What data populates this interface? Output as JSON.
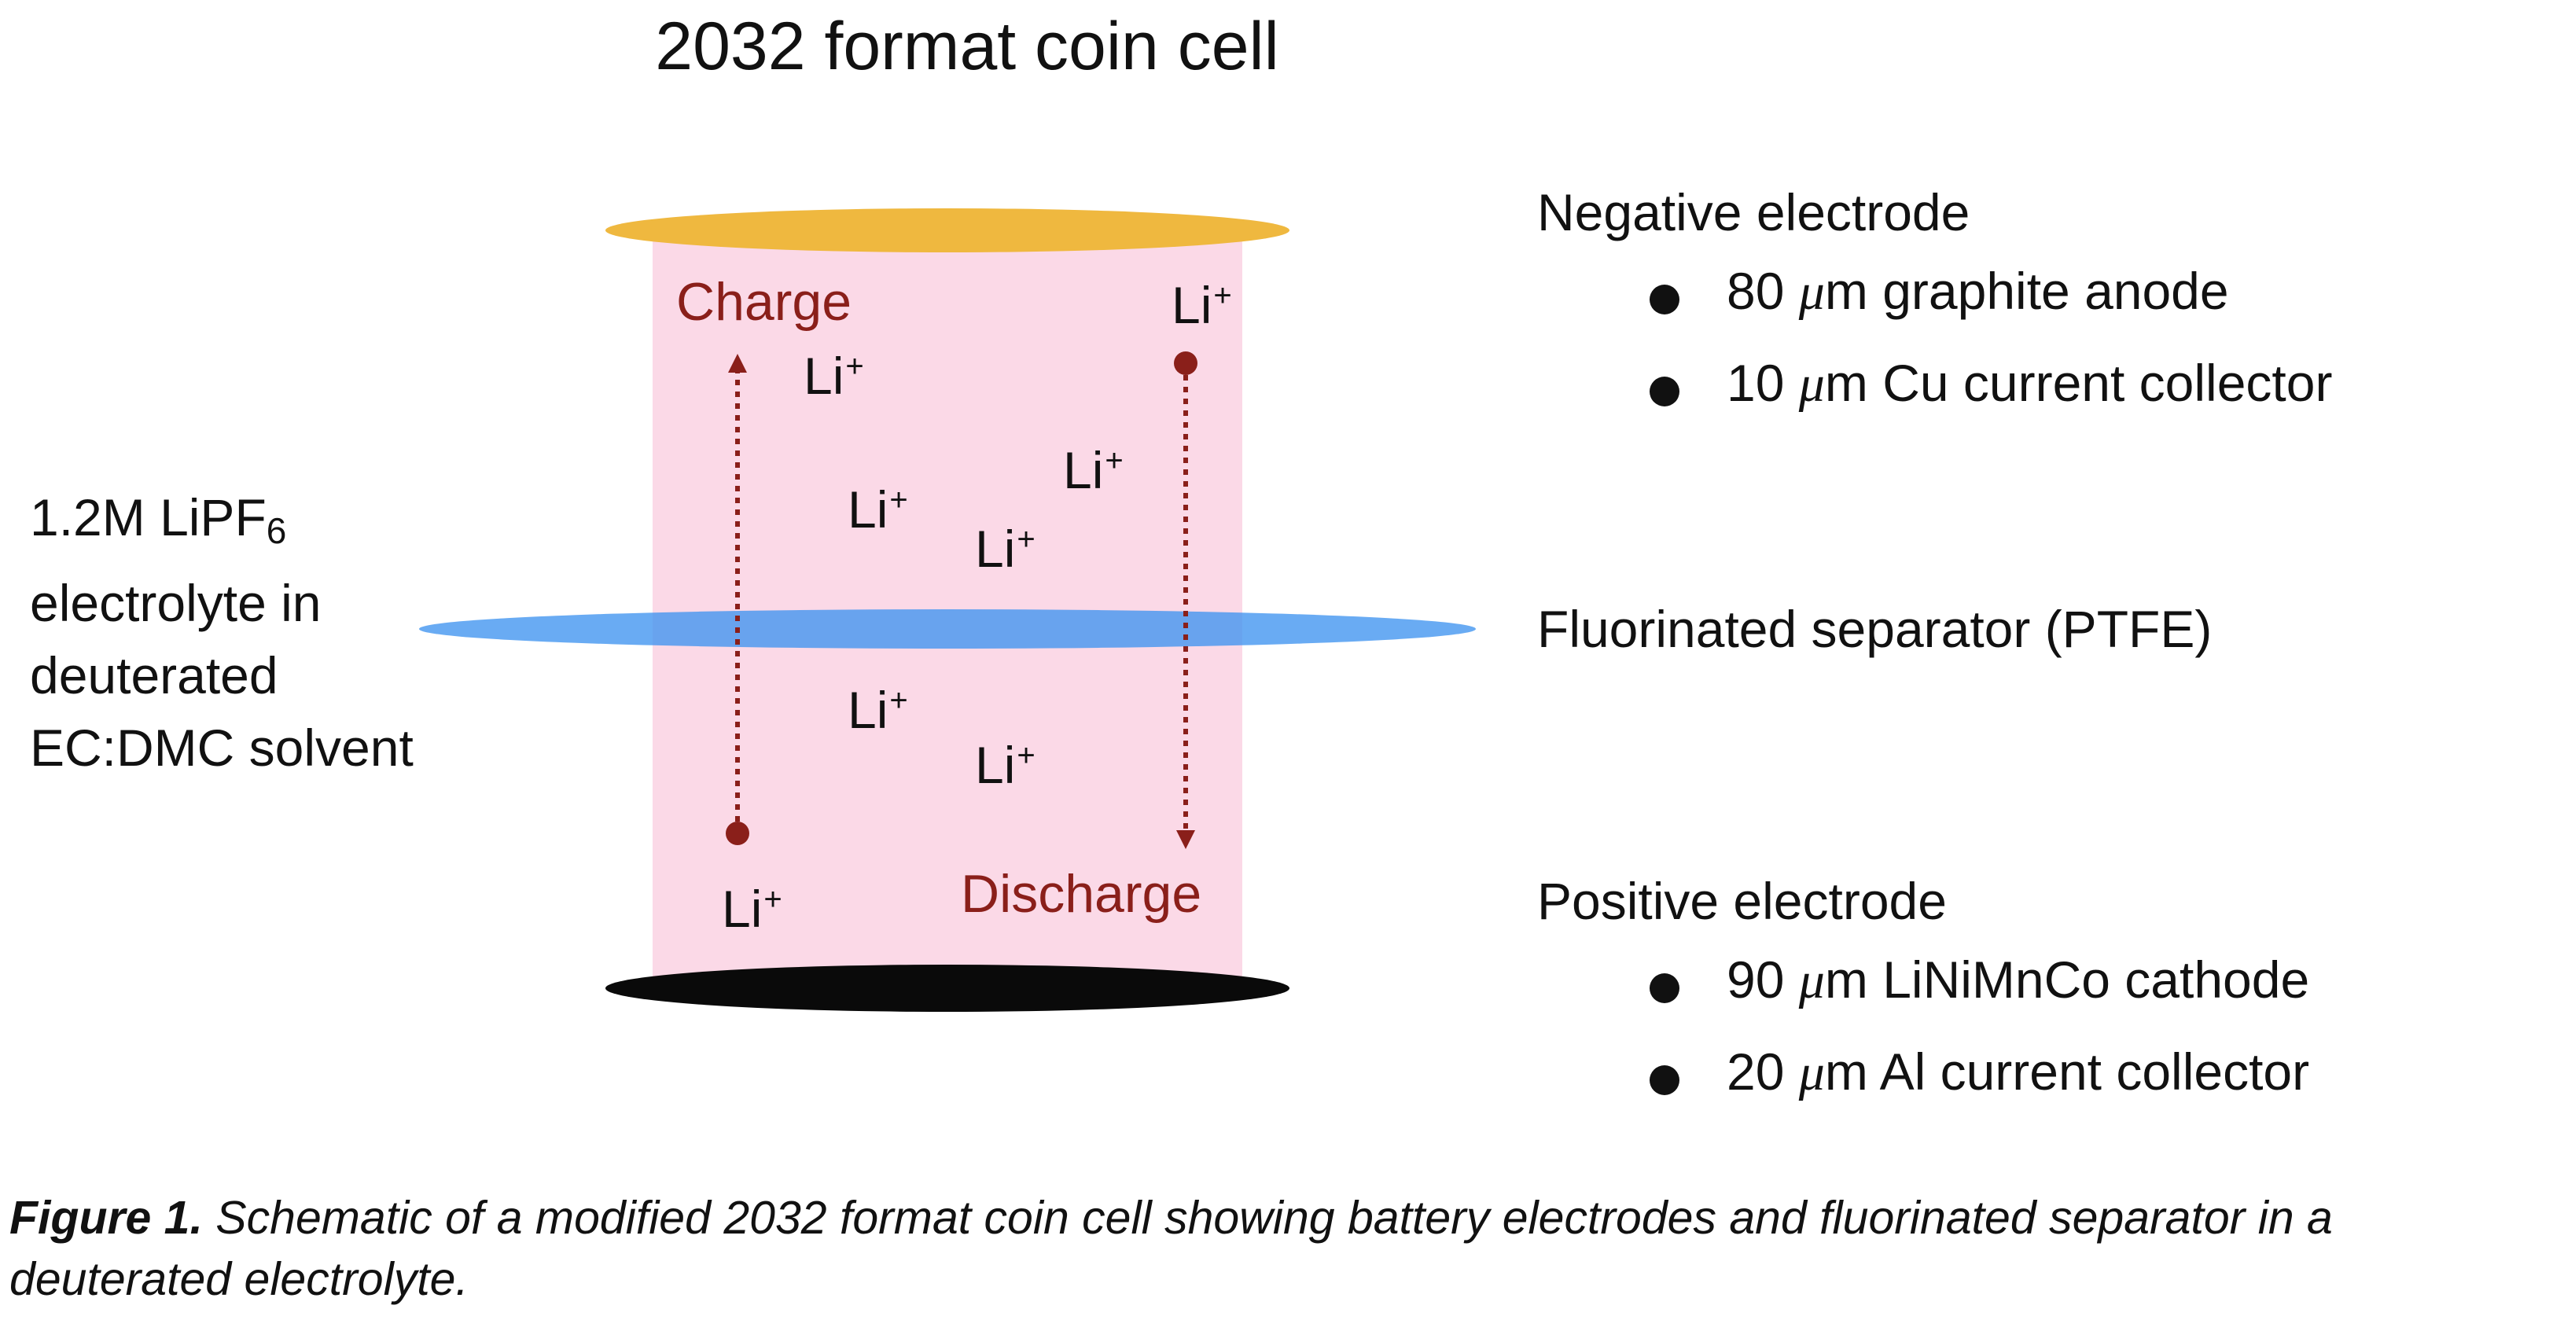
{
  "title": "2032 format coin cell",
  "electrolyte": {
    "line1": "1.2M LiPF",
    "line1_sub": "6",
    "line2": "electrolyte in",
    "line3": "deuterated",
    "line4": "EC:DMC solvent"
  },
  "ion": {
    "symbol": "Li",
    "charge": "+"
  },
  "charge_label": "Charge",
  "discharge_label": "Discharge",
  "negative": {
    "heading": "Negative electrode",
    "items": [
      {
        "num": "80",
        "unit": "μ",
        "text": "m graphite anode"
      },
      {
        "num": "10",
        "unit": "μ",
        "text": "m Cu current collector"
      }
    ]
  },
  "separator": {
    "label": "Fluorinated separator (PTFE)"
  },
  "positive": {
    "heading": "Positive electrode",
    "items": [
      {
        "num": "90",
        "unit": "μ",
        "text": "m LiNiMnCo cathode"
      },
      {
        "num": "20",
        "unit": "μ",
        "text": "m Al current collector"
      }
    ]
  },
  "caption": {
    "bold": "Figure 1.",
    "text": " Schematic of a modified 2032 format coin cell showing battery electrodes and fluorinated separator in a deuterated electrolyte."
  },
  "colors": {
    "cylinder": "#fbd9e7",
    "top_disc": "#efb83f",
    "bottom_disc": "#0a0a0a",
    "separator": "#3f93f0",
    "arrow": "#8a1f1a"
  }
}
